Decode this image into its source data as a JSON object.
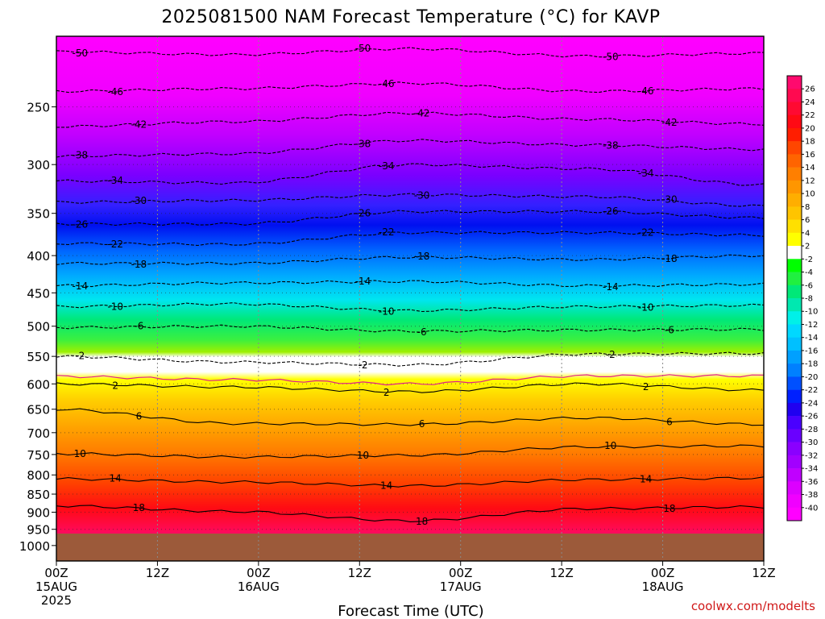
{
  "chart_data": {
    "type": "heatmap",
    "title": "2025081500 NAM Forecast Temperature (°C) for KAVP",
    "xlabel": "Forecast Time (UTC)",
    "ylabel": "",
    "credit": "coolwx.com/modelts",
    "x_ticks": [
      {
        "hours": 0,
        "lines": [
          "00Z",
          "15AUG",
          "2025"
        ]
      },
      {
        "hours": 12,
        "lines": [
          "12Z"
        ]
      },
      {
        "hours": 24,
        "lines": [
          "00Z",
          "16AUG"
        ]
      },
      {
        "hours": 36,
        "lines": [
          "12Z"
        ]
      },
      {
        "hours": 48,
        "lines": [
          "00Z",
          "17AUG"
        ]
      },
      {
        "hours": 60,
        "lines": [
          "12Z"
        ]
      },
      {
        "hours": 72,
        "lines": [
          "00Z",
          "18AUG"
        ]
      },
      {
        "hours": 84,
        "lines": [
          "12Z"
        ]
      }
    ],
    "xlim_hours": [
      0,
      84
    ],
    "y_ticks": [
      250,
      300,
      350,
      400,
      450,
      500,
      550,
      600,
      650,
      700,
      750,
      800,
      850,
      900,
      950,
      1000
    ],
    "ylim_hPa": [
      1050,
      200
    ],
    "y_scale": "log-pressure",
    "underground_below_hPa": 965,
    "colorbar_labels": [
      26,
      24,
      22,
      20,
      18,
      16,
      14,
      12,
      10,
      8,
      6,
      4,
      2,
      -2,
      -4,
      -6,
      -8,
      -10,
      -12,
      -14,
      -16,
      -18,
      -20,
      -22,
      -24,
      -26,
      -28,
      -30,
      -32,
      -34,
      -36,
      -38,
      -40
    ],
    "contour_levels": [
      -50,
      -46,
      -42,
      -38,
      -34,
      -30,
      -26,
      -22,
      -18,
      -14,
      -10,
      -6,
      -2,
      2,
      6,
      10,
      14,
      18
    ],
    "isotherms": [
      {
        "level": -50,
        "hPa": [
          210,
          212,
          208,
          213,
          211
        ]
      },
      {
        "level": -46,
        "hPa": [
          238,
          236,
          232,
          238,
          236
        ]
      },
      {
        "level": -42,
        "hPa": [
          266,
          262,
          255,
          260,
          264
        ]
      },
      {
        "level": -38,
        "hPa": [
          292,
          290,
          278,
          282,
          286
        ]
      },
      {
        "level": -34,
        "hPa": [
          316,
          318,
          300,
          304,
          320
        ]
      },
      {
        "level": -30,
        "hPa": [
          338,
          336,
          330,
          332,
          342
        ]
      },
      {
        "level": -26,
        "hPa": [
          362,
          362,
          348,
          348,
          355
        ]
      },
      {
        "level": -22,
        "hPa": [
          385,
          386,
          372,
          372,
          375
        ]
      },
      {
        "level": -18,
        "hPa": [
          410,
          410,
          402,
          405,
          400
        ]
      },
      {
        "level": -14,
        "hPa": [
          440,
          436,
          434,
          440,
          438
        ]
      },
      {
        "level": -10,
        "hPa": [
          470,
          466,
          476,
          470,
          468
        ]
      },
      {
        "level": -6,
        "hPa": [
          502,
          500,
          508,
          506,
          505
        ]
      },
      {
        "level": -2,
        "hPa": [
          550,
          560,
          565,
          546,
          545
        ]
      },
      {
        "level": 2,
        "hPa": [
          600,
          606,
          615,
          600,
          612
        ]
      },
      {
        "level": 6,
        "hPa": [
          650,
          680,
          682,
          668,
          682
        ]
      },
      {
        "level": 10,
        "hPa": [
          748,
          756,
          752,
          732,
          730
        ]
      },
      {
        "level": 14,
        "hPa": [
          810,
          818,
          828,
          812,
          808
        ]
      },
      {
        "level": 18,
        "hPa": [
          882,
          898,
          925,
          890,
          885
        ]
      }
    ],
    "freezing_level_hPa": [
      586,
      592,
      600,
      585,
      585
    ]
  }
}
